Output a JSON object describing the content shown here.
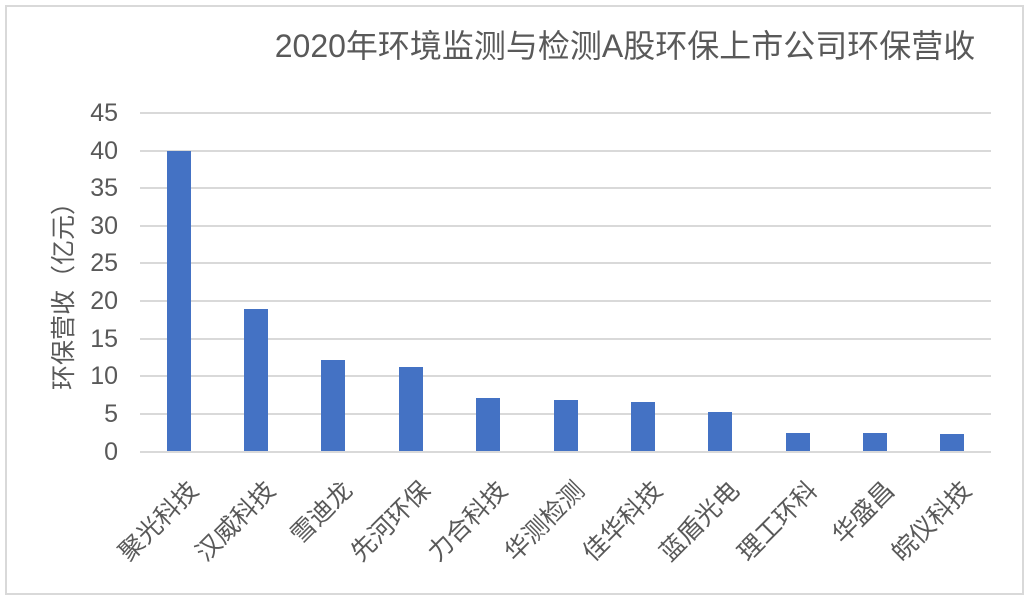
{
  "chart_data": {
    "type": "bar",
    "title": "2020年环境监测与检测A股环保上市公司环保营收",
    "xlabel": "",
    "ylabel": "环保营收（亿元）",
    "categories": [
      "聚光科技",
      "汉威科技",
      "雪迪龙",
      "先河环保",
      "力合科技",
      "华测检测",
      "佳华科技",
      "蓝盾光电",
      "理工环科",
      "华盛昌",
      "皖仪科技"
    ],
    "values": [
      40,
      18.9,
      12.2,
      11.2,
      7.1,
      6.8,
      6.6,
      5.2,
      2.5,
      2.4,
      2.3
    ],
    "ylim": [
      0,
      45
    ],
    "ytick_step": 5,
    "grid": true,
    "legend": false,
    "bar_color": "#4472C4",
    "grid_color": "#D9D9D9",
    "text_color": "#595959",
    "border_color": "#D9D9D9"
  }
}
